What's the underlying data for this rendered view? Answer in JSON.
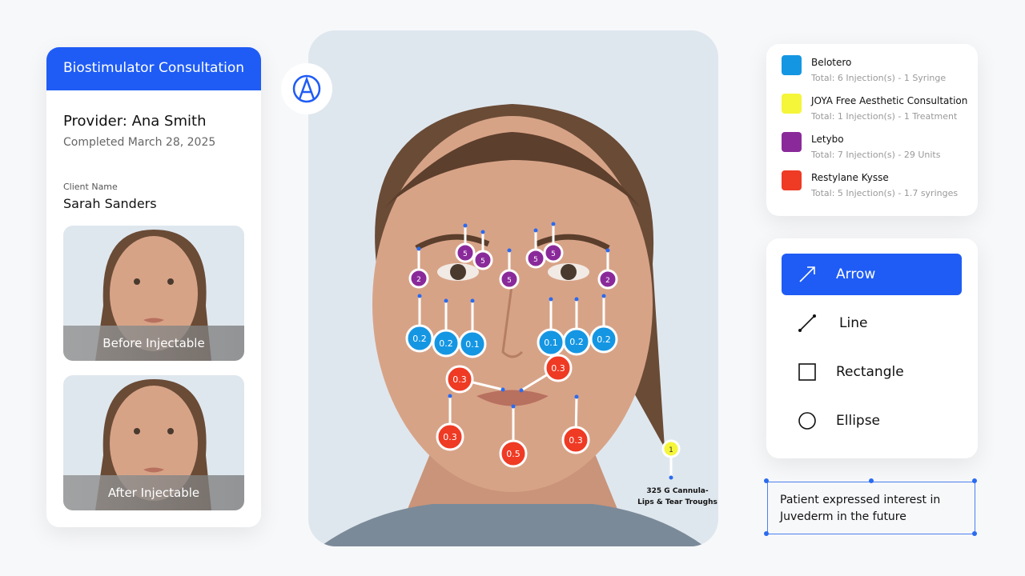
{
  "consultation": {
    "title": "Biostimulator Consultation",
    "provider": "Provider: Ana Smith",
    "completed": "Completed March 28, 2025",
    "client_label": "Client Name",
    "client_name": "Sarah Sanders",
    "photos": [
      "Before Injectable",
      "After Injectable"
    ]
  },
  "legend": [
    {
      "name": "Belotero",
      "total": "Total: 6 Injection(s) - 1 Syringe",
      "color": "#1596e3",
      "points": [
        "0.2",
        "0.2",
        "0.1",
        "0.1",
        "0.2",
        "0.2"
      ]
    },
    {
      "name": "JOYA Free Aesthetic Consultation",
      "total": "Total: 1 Injection(s) - 1 Treatment",
      "color": "#f5f53a",
      "points": [
        "1"
      ]
    },
    {
      "name": "Letybo",
      "total": "Total: 7 Injection(s) - 29 Units",
      "color": "#8a2a9a",
      "points": [
        "5",
        "5",
        "5",
        "5",
        "5",
        "2",
        "2"
      ]
    },
    {
      "name": "Restylane Kysse",
      "total": "Total: 5 Injection(s) - 1.7 syringes",
      "color": "#ef3a24",
      "points": [
        "0.3",
        "0.3",
        "0.3",
        "0.5",
        "0.3"
      ]
    }
  ],
  "annotation": [
    "325 G Cannula-",
    "Lips & Tear Troughs"
  ],
  "tools": [
    {
      "label": "Arrow",
      "active": true
    },
    {
      "label": "Line",
      "active": false
    },
    {
      "label": "Rectangle",
      "active": false
    },
    {
      "label": "Ellipse",
      "active": false
    }
  ],
  "note": [
    "Patient expressed interest in",
    "Juvederm in the future"
  ]
}
